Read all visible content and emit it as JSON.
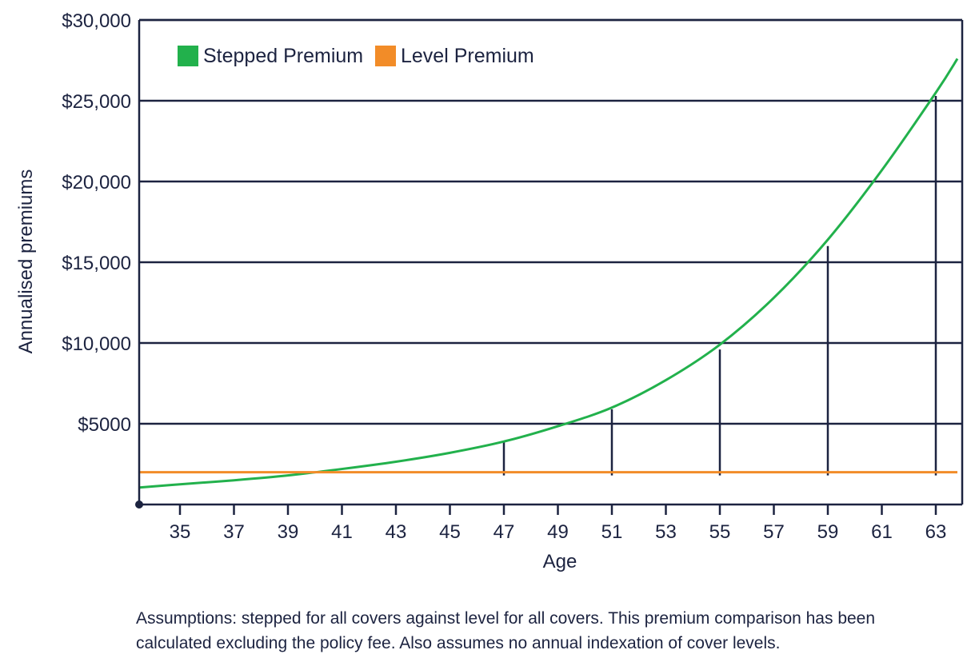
{
  "chart_data": {
    "type": "line",
    "xlabel": "Age",
    "ylabel": "Annualised premiums",
    "xlim": [
      33.5,
      63.8
    ],
    "ylim": [
      0,
      30000
    ],
    "x_ticks": [
      35,
      37,
      39,
      41,
      43,
      45,
      47,
      49,
      51,
      53,
      55,
      57,
      59,
      61,
      63
    ],
    "y_ticks": [
      {
        "value": 5000,
        "label": "$5000"
      },
      {
        "value": 10000,
        "label": "$10,000"
      },
      {
        "value": 15000,
        "label": "$15,000"
      },
      {
        "value": 20000,
        "label": "$20,000"
      },
      {
        "value": 25000,
        "label": "$25,000"
      },
      {
        "value": 30000,
        "label": "$30,000"
      }
    ],
    "grid": true,
    "legend_position": "top-left",
    "series": [
      {
        "name": "Stepped Premium",
        "color": "#22b14c",
        "x": [
          33.5,
          35,
          37,
          39,
          41,
          43,
          45,
          47,
          49,
          51,
          53,
          55,
          57,
          59,
          61,
          63,
          63.8
        ],
        "y": [
          1050,
          1250,
          1500,
          1800,
          2200,
          2650,
          3200,
          3900,
          4850,
          6000,
          7700,
          9900,
          12800,
          16400,
          20700,
          25500,
          27600
        ]
      },
      {
        "name": "Level Premium",
        "color": "#f28c28",
        "x": [
          33.5,
          63.8
        ],
        "y": [
          2000,
          2000
        ]
      }
    ],
    "markers": [
      {
        "age": 47,
        "from": 1800,
        "to": 3900
      },
      {
        "age": 51,
        "from": 1800,
        "to": 5900
      },
      {
        "age": 55,
        "from": 1800,
        "to": 9600
      },
      {
        "age": 59,
        "from": 1800,
        "to": 16000
      },
      {
        "age": 63,
        "from": 1800,
        "to": 25300
      }
    ]
  },
  "footnote": {
    "line1": "Assumptions: stepped for all covers against level for all covers. This premium comparison has been",
    "line2": "calculated excluding the policy fee. Also assumes no annual indexation of cover levels."
  }
}
